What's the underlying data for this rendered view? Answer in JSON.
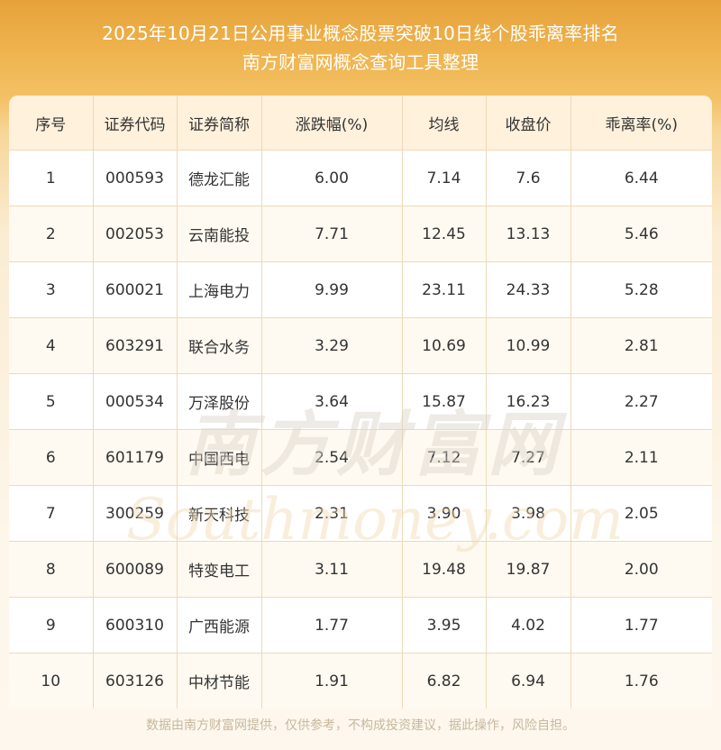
{
  "header": {
    "title_line1": "2025年10月21日公用事业概念股票突破10日线个股乖离率排名",
    "title_line2": "南方财富网概念查询工具整理"
  },
  "table": {
    "columns": [
      "序号",
      "证券代码",
      "证券简称",
      "涨跌幅(%)",
      "均线",
      "收盘价",
      "乖离率(%)"
    ],
    "rows": [
      [
        "1",
        "000593",
        "德龙汇能",
        "6.00",
        "7.14",
        "7.6",
        "6.44"
      ],
      [
        "2",
        "002053",
        "云南能投",
        "7.71",
        "12.45",
        "13.13",
        "5.46"
      ],
      [
        "3",
        "600021",
        "上海电力",
        "9.99",
        "23.11",
        "24.33",
        "5.28"
      ],
      [
        "4",
        "603291",
        "联合水务",
        "3.29",
        "10.69",
        "10.99",
        "2.81"
      ],
      [
        "5",
        "000534",
        "万泽股份",
        "3.64",
        "15.87",
        "16.23",
        "2.27"
      ],
      [
        "6",
        "601179",
        "中国西电",
        "2.54",
        "7.12",
        "7.27",
        "2.11"
      ],
      [
        "7",
        "300259",
        "新天科技",
        "2.31",
        "3.90",
        "3.98",
        "2.05"
      ],
      [
        "8",
        "600089",
        "特变电工",
        "3.11",
        "19.48",
        "19.87",
        "2.00"
      ],
      [
        "9",
        "600310",
        "广西能源",
        "1.77",
        "3.95",
        "4.02",
        "1.77"
      ],
      [
        "10",
        "603126",
        "中材节能",
        "1.91",
        "6.82",
        "6.94",
        "1.76"
      ]
    ]
  },
  "watermark": {
    "cn": "南方财富网",
    "en": "Southmoney.com"
  },
  "footer": {
    "disclaimer": "数据由南方财富网提供，仅供参考，不构成投资建议，据此操作，风险自担。"
  },
  "colors": {
    "header_bg": "#e6a23a",
    "table_head_bg": "#fff1dc",
    "border": "#eed9b8",
    "footer_text": "#c8b89e"
  }
}
